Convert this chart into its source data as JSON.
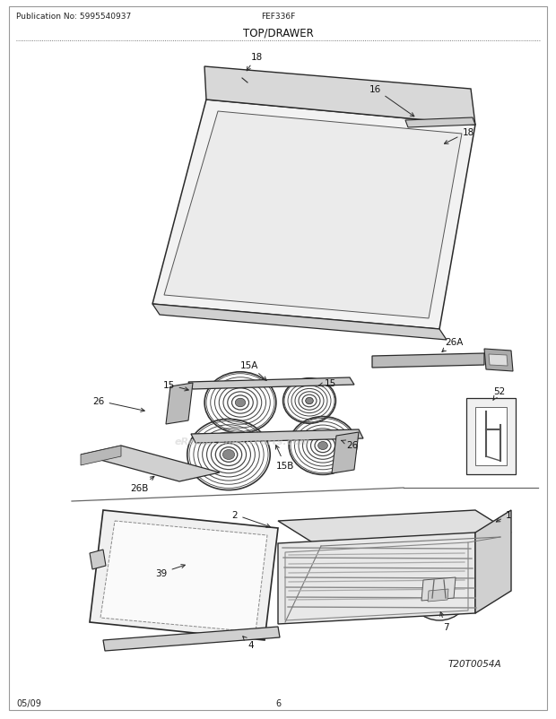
{
  "title": "TOP/DRAWER",
  "pub_no": "Publication No: 5995540937",
  "model": "FEF336F",
  "diagram_code": "T20T0054A",
  "date": "05/09",
  "page": "6",
  "bg_color": "#ffffff",
  "lc": "#2a2a2a",
  "lw": 0.9
}
